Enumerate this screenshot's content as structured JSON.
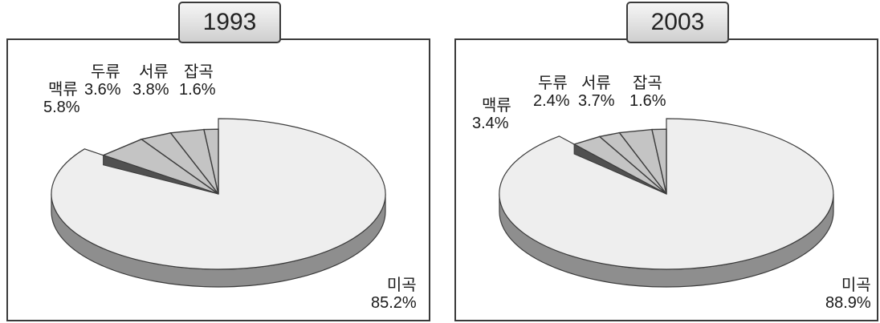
{
  "chart_data": [
    {
      "type": "pie",
      "title": "1993",
      "labels": [
        "미곡",
        "맥류",
        "두류",
        "서류",
        "잡곡"
      ],
      "values": [
        85.2,
        5.8,
        3.6,
        3.8,
        1.6
      ],
      "value_labels": [
        "85.2%",
        "5.8%",
        "3.6%",
        "3.8%",
        "1.6%"
      ]
    },
    {
      "type": "pie",
      "title": "2003",
      "labels": [
        "미곡",
        "맥류",
        "두류",
        "서류",
        "잡곡"
      ],
      "values": [
        88.9,
        3.4,
        2.4,
        3.7,
        1.6
      ],
      "value_labels": [
        "88.9%",
        "3.4%",
        "2.4%",
        "3.7%",
        "1.6%"
      ]
    }
  ],
  "colors": {
    "main_top": "#eeeeee",
    "main_side": "#8e8e8e",
    "minor_top": "#c4c4c4",
    "outline": "#3c3c3c"
  }
}
